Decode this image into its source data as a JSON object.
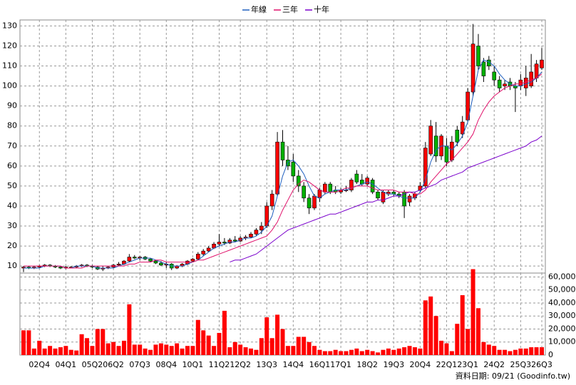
{
  "chart_data": [
    {
      "type": "candlestick",
      "categories": [
        null,
        null,
        null,
        "02Q4",
        null,
        null,
        null,
        null,
        "04Q1",
        null,
        null,
        null,
        null,
        "05Q2",
        null,
        null,
        null,
        "06Q2",
        null,
        null,
        null,
        null,
        "07Q3",
        null,
        null,
        null,
        null,
        "08Q4",
        null,
        null,
        null,
        null,
        "10Q1",
        null,
        null,
        null,
        null,
        "11Q2",
        null,
        null,
        null,
        "12Q2",
        null,
        null,
        null,
        null,
        "13Q3",
        null,
        null,
        null,
        null,
        "14Q4",
        null,
        null,
        null,
        null,
        "16Q1",
        null,
        null,
        null,
        "17Q1",
        null,
        null,
        null,
        null,
        "18Q2",
        null,
        null,
        null,
        null,
        "19Q3",
        null,
        null,
        null,
        null,
        "20Q4",
        null,
        null,
        null,
        null,
        "22Q1",
        null,
        null,
        null,
        "23Q1",
        null,
        null,
        null,
        null,
        "24Q2",
        null,
        null,
        null,
        null,
        "25Q3",
        null,
        null,
        null,
        "26Q3"
      ],
      "open": [
        9,
        9.5,
        9,
        9.5,
        10,
        10.5,
        10,
        9.5,
        9,
        9.5,
        9.5,
        10,
        10.5,
        10,
        9.5,
        8.5,
        9,
        9.5,
        10.5,
        11,
        12.5,
        14.5,
        14,
        14.5,
        13.5,
        12.5,
        11.5,
        10.5,
        11,
        9,
        10,
        11,
        12.5,
        13.5,
        16,
        17.5,
        19,
        21,
        22,
        21.5,
        23,
        22.5,
        24,
        24.5,
        26,
        28,
        30,
        40,
        46,
        72,
        63,
        62,
        55,
        50,
        44,
        39,
        44,
        47,
        51,
        48,
        47,
        48,
        48,
        56,
        53,
        51,
        53,
        47,
        42,
        46,
        47,
        46,
        47,
        42,
        44,
        48,
        50,
        66,
        75,
        65,
        70,
        63,
        78,
        76,
        83,
        97,
        120,
        112,
        113,
        107,
        103,
        100,
        102,
        100,
        100,
        99,
        100,
        104,
        109
      ],
      "high": [
        10,
        10,
        10,
        10.5,
        11,
        11,
        10.5,
        10,
        10,
        10,
        10.5,
        11,
        11,
        10.5,
        10,
        10,
        10,
        11,
        12,
        13,
        16,
        15.5,
        15,
        15,
        14,
        13,
        12.5,
        12,
        11.5,
        10.5,
        11.5,
        13,
        14,
        17,
        18.5,
        20,
        22,
        26,
        24,
        24,
        25,
        25,
        25.5,
        27,
        29,
        32,
        42,
        48,
        77,
        78,
        70,
        66,
        58,
        52,
        46,
        46,
        49,
        52,
        52,
        50,
        49,
        50,
        54,
        58,
        56,
        55,
        54,
        48,
        48,
        48,
        48,
        47,
        48,
        46,
        47,
        52,
        72,
        83,
        82,
        76,
        74,
        75,
        80,
        85,
        99,
        131,
        126,
        114,
        115,
        110,
        105,
        103,
        104,
        102,
        106,
        110,
        116,
        113,
        119
      ],
      "low": [
        7,
        8.5,
        8.5,
        9,
        9.5,
        9.5,
        9,
        8.5,
        8.5,
        9,
        9,
        9.5,
        9.5,
        9,
        8,
        7.5,
        8.5,
        9,
        10,
        10.5,
        12,
        13.5,
        13,
        13,
        12,
        11,
        10,
        9,
        8,
        8.5,
        9.5,
        10.5,
        12,
        13,
        15,
        17,
        18.5,
        20,
        20.5,
        21,
        22,
        22,
        23,
        24,
        25,
        26,
        29,
        38,
        45,
        60,
        58,
        52,
        47,
        42,
        36,
        38,
        42,
        46,
        46,
        46,
        46,
        47,
        47,
        51,
        50,
        50,
        46,
        43,
        41,
        45,
        45,
        44,
        34,
        40,
        43,
        47,
        49,
        65,
        62,
        63,
        60,
        62,
        70,
        74,
        82,
        95,
        108,
        102,
        108,
        100,
        97,
        98,
        98,
        87,
        98,
        95,
        99,
        102,
        108
      ],
      "close": [
        9.5,
        9,
        9.5,
        10,
        10.5,
        10,
        9.5,
        9,
        9.5,
        9.5,
        10,
        10.5,
        10,
        9.5,
        8.5,
        9,
        9.5,
        10.5,
        11,
        12.5,
        14.5,
        14,
        14.5,
        13.5,
        12.5,
        11.5,
        10.5,
        11,
        9,
        10,
        11,
        12.5,
        13.5,
        16,
        17.5,
        19,
        21,
        22,
        21.5,
        23,
        22.5,
        24,
        24.5,
        26,
        28,
        30,
        40,
        46,
        72,
        63,
        60,
        55,
        50,
        44,
        39,
        45,
        48,
        51,
        47,
        47,
        48,
        48,
        53,
        52,
        51,
        54,
        47,
        44,
        47,
        47,
        46,
        45,
        40,
        45,
        46,
        50,
        69,
        80,
        65,
        75,
        62,
        72,
        72,
        82,
        97,
        121,
        110,
        105,
        110,
        103,
        99,
        101,
        100,
        99,
        103,
        104,
        107,
        111,
        113
      ],
      "up_color": "#ff0000",
      "down_color": "#00b000",
      "series": [
        {
          "name": "年線",
          "color": "#1f5fbf",
          "values": [
            9,
            9,
            9,
            9,
            10,
            10,
            10,
            10,
            9,
            9,
            10,
            10,
            10,
            10,
            9,
            9,
            9,
            9,
            10,
            11,
            12,
            13,
            14,
            14,
            14,
            13,
            12,
            11,
            10,
            10,
            10,
            11,
            12,
            13,
            15,
            17,
            19,
            20,
            21,
            22,
            22,
            23,
            24,
            24,
            25,
            27,
            30,
            35,
            45,
            55,
            62,
            63,
            60,
            56,
            50,
            45,
            44,
            46,
            47,
            48,
            48,
            48,
            49,
            50,
            51,
            52,
            51,
            49,
            47,
            46,
            46,
            45,
            44,
            44,
            44,
            47,
            53,
            62,
            68,
            70,
            70,
            68,
            71,
            75,
            82,
            95,
            108,
            113,
            112,
            110,
            106,
            103,
            101,
            100,
            100,
            101,
            102,
            104,
            107
          ]
        },
        {
          "name": "三年",
          "color": "#e0106a",
          "values": [
            10,
            10,
            10,
            10,
            10,
            10,
            10,
            10,
            9,
            9,
            9,
            9,
            10,
            10,
            10,
            10,
            10,
            10,
            10,
            10,
            11,
            11,
            12,
            12,
            12,
            13,
            13,
            12,
            12,
            12,
            12,
            12,
            12,
            13,
            13,
            14,
            15,
            16,
            17,
            18,
            19,
            20,
            21,
            22,
            23,
            24,
            25,
            28,
            32,
            38,
            43,
            48,
            51,
            53,
            52,
            50,
            48,
            47,
            47,
            47,
            48,
            49,
            49,
            50,
            50,
            50,
            49,
            48,
            48,
            48,
            48,
            47,
            47,
            47,
            46,
            46,
            48,
            52,
            55,
            58,
            61,
            63,
            66,
            69,
            72,
            76,
            83,
            88,
            92,
            95,
            97,
            99,
            100,
            101,
            101,
            102,
            103,
            104,
            106
          ]
        },
        {
          "name": "十年",
          "color": "#7a00cc",
          "values": [
            null,
            null,
            null,
            null,
            null,
            null,
            null,
            null,
            null,
            null,
            null,
            null,
            null,
            null,
            null,
            null,
            null,
            null,
            null,
            null,
            null,
            null,
            null,
            null,
            null,
            null,
            null,
            null,
            null,
            null,
            null,
            null,
            null,
            null,
            null,
            null,
            null,
            null,
            null,
            12,
            13,
            13,
            14,
            15,
            16,
            18,
            20,
            22,
            24,
            26,
            28,
            29,
            30,
            31,
            32,
            33,
            34,
            35,
            36,
            36,
            37,
            38,
            39,
            40,
            41,
            42,
            42,
            43,
            43,
            44,
            45,
            45,
            46,
            47,
            47,
            48,
            49,
            50,
            51,
            53,
            54,
            55,
            56,
            57,
            59,
            60,
            61,
            62,
            63,
            64,
            65,
            66,
            67,
            68,
            69,
            70,
            72,
            73,
            75
          ]
        }
      ],
      "ylim": [
        6.5,
        133
      ],
      "yticks": [
        10,
        20,
        30,
        40,
        50,
        60,
        70,
        80,
        90,
        100,
        110,
        120,
        130
      ],
      "grid": true,
      "footer": "資料日期: 09/21  (Goodinfo.tw)"
    },
    {
      "type": "bar",
      "color": "#ff0000",
      "values": [
        19000,
        19000,
        5000,
        11000,
        5000,
        7000,
        5000,
        6000,
        7000,
        4000,
        3500,
        16000,
        13000,
        7000,
        20000,
        20000,
        9000,
        10000,
        7000,
        11000,
        39000,
        8000,
        8000,
        5000,
        4000,
        8000,
        9000,
        8000,
        7000,
        9000,
        5000,
        7000,
        7000,
        27000,
        19000,
        15000,
        7000,
        17000,
        34000,
        6000,
        10000,
        8000,
        6000,
        5000,
        4000,
        13000,
        29000,
        13000,
        31000,
        20000,
        7000,
        7000,
        14000,
        14000,
        10000,
        7000,
        4000,
        3000,
        3000,
        4000,
        3000,
        3000,
        4000,
        5000,
        3000,
        4000,
        3000,
        2000,
        4000,
        5000,
        4000,
        5000,
        6000,
        7000,
        6000,
        5000,
        42000,
        45000,
        30000,
        11000,
        9000,
        3000,
        24000,
        46000,
        20000,
        66000,
        36000,
        10000,
        8000,
        7000,
        4000,
        4000,
        3000,
        4000,
        5000,
        5000,
        6000,
        6000,
        6000
      ],
      "ylim": [
        0,
        63000
      ],
      "yticks": [
        0,
        {
          "value": 10000,
          "label": "10,000"
        },
        {
          "value": 20000,
          "label": "20,000"
        },
        {
          "value": 30000,
          "label": "30,000"
        },
        {
          "value": 40000,
          "label": "40,000"
        },
        {
          "value": 50000,
          "label": "50,000"
        },
        {
          "value": 60000,
          "label": "60,000"
        }
      ],
      "grid": true
    }
  ]
}
